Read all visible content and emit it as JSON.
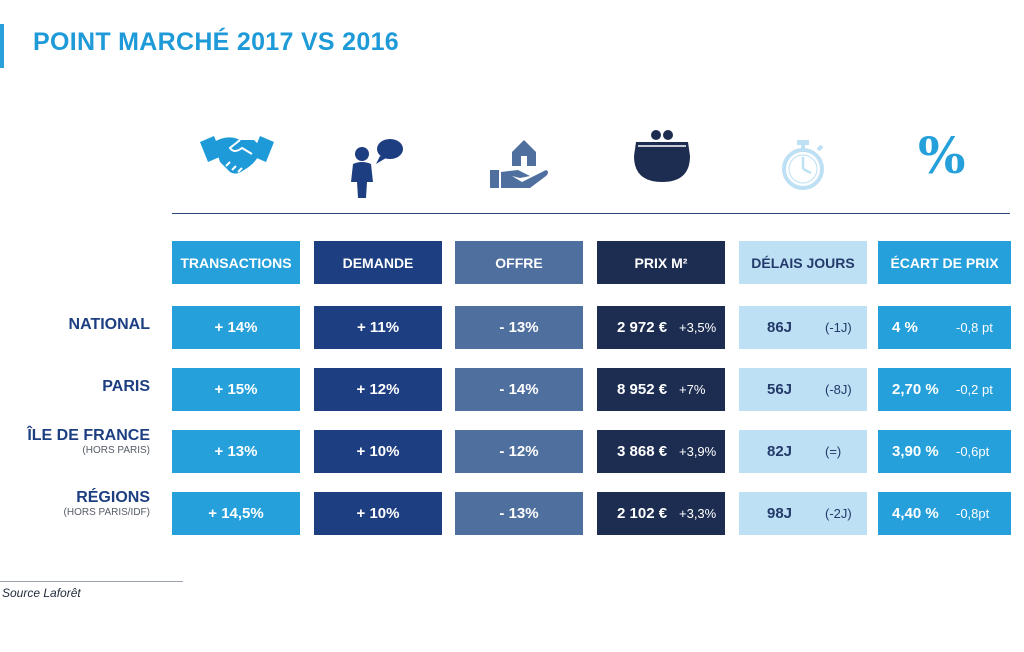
{
  "title": "POINT MARCHÉ 2017 VS 2016",
  "icons": [
    "handshake-icon",
    "person-speech-icon",
    "hand-house-icon",
    "purse-icon",
    "stopwatch-icon",
    "percent-icon"
  ],
  "icon_glyphs": {
    "percent": "%"
  },
  "colors": {
    "title": "#1e9ad8",
    "transactions": "#25a0db",
    "demande": "#1d3f82",
    "offre": "#4f6f9e",
    "prix": "#1d2d51",
    "delais": "#bde0f4",
    "ecart": "#25a0db",
    "row_label": "#1d3f82"
  },
  "chart_data": {
    "type": "table",
    "columns": [
      "TRANSACTIONS",
      "DEMANDE",
      "OFFRE",
      "PRIX M²",
      "DÉLAIS JOURS",
      "ÉCART DE PRIX"
    ],
    "rows": [
      {
        "name": "NATIONAL",
        "sub": "",
        "cells": [
          {
            "main": "+ 14%"
          },
          {
            "main": "+ 11%"
          },
          {
            "main": "- 13%"
          },
          {
            "main": "2 972 €",
            "sub": "+3,5%"
          },
          {
            "main": "86J",
            "sub": "(-1J)"
          },
          {
            "main": "4 %",
            "sub": "-0,8 pt"
          }
        ]
      },
      {
        "name": "PARIS",
        "sub": "",
        "cells": [
          {
            "main": "+ 15%"
          },
          {
            "main": "+ 12%"
          },
          {
            "main": "- 14%"
          },
          {
            "main": "8 952 €",
            "sub": "+7%"
          },
          {
            "main": "56J",
            "sub": "(-8J)"
          },
          {
            "main": "2,70 %",
            "sub": "-0,2 pt"
          }
        ]
      },
      {
        "name": "ÎLE DE FRANCE",
        "sub": "(HORS PARIS)",
        "cells": [
          {
            "main": "+ 13%"
          },
          {
            "main": "+ 10%"
          },
          {
            "main": "- 12%"
          },
          {
            "main": "3 868 €",
            "sub": "+3,9%"
          },
          {
            "main": "82J",
            "sub": "(=)"
          },
          {
            "main": "3,90 %",
            "sub": "-0,6pt"
          }
        ]
      },
      {
        "name": "RÉGIONS",
        "sub": "(HORS PARIS/IDF)",
        "cells": [
          {
            "main": "+ 14,5%"
          },
          {
            "main": "+ 10%"
          },
          {
            "main": "- 13%"
          },
          {
            "main": "2 102 €",
            "sub": "+3,3%"
          },
          {
            "main": "98J",
            "sub": "(-2J)"
          },
          {
            "main": "4,40 %",
            "sub": "-0,8pt"
          }
        ]
      }
    ]
  },
  "source": "Source Laforêt"
}
